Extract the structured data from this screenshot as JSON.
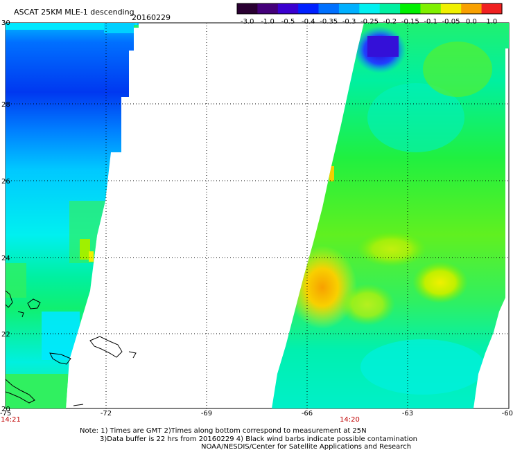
{
  "title": "ASCAT 25KM MLE-1 descending",
  "date": "20160229",
  "colorbar": {
    "labels": [
      "-3.0",
      "-1.0",
      "-0.5",
      "-0.4",
      "-0.35",
      "-0.3",
      "-0.25",
      "-0.2",
      "-0.15",
      "-0.1",
      "-0.05",
      "0.0",
      "1.0"
    ],
    "colors": [
      "#2a0032",
      "#44007a",
      "#3a00d0",
      "#0020ff",
      "#0070ff",
      "#00b0ff",
      "#00f0f0",
      "#00f0a0",
      "#00f000",
      "#80f000",
      "#f0f000",
      "#f8a000",
      "#f02020"
    ]
  },
  "axes": {
    "lon_labels": [
      "-75",
      "-72",
      "-69",
      "-66",
      "-63",
      "-60"
    ],
    "lat_labels": [
      "30",
      "28",
      "26",
      "24",
      "22",
      "20"
    ]
  },
  "swath_times": [
    "14:21",
    "14:20"
  ],
  "notes": [
    "Note: 1) Times are GMT 2)Times along bottom correspond to measurement at 25N",
    "3)Data buffer is 22 hrs from 20160229 4) Black wind barbs indicate possible contamination",
    "NOAA/NESDIS/Center for Satellite Applications and Research"
  ]
}
